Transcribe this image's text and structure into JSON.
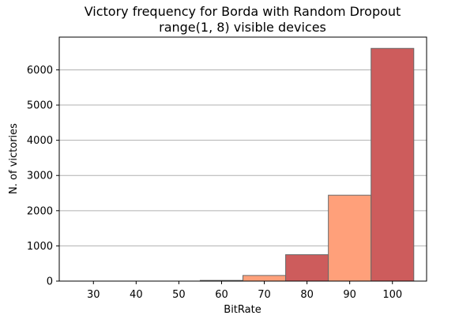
{
  "chart_data": {
    "type": "bar",
    "title_line1": "Victory frequency for Borda with Random Dropout",
    "title_line2": "range(1, 8) visible devices",
    "xlabel": "BitRate",
    "ylabel": "N. of victories",
    "x_tick_labels": [
      "30",
      "40",
      "50",
      "60",
      "70",
      "80",
      "90",
      "100"
    ],
    "y_tick_labels": [
      "0",
      "1000",
      "2000",
      "3000",
      "4000",
      "5000",
      "6000"
    ],
    "xlim": [
      22,
      108
    ],
    "ylim": [
      0,
      6930
    ],
    "grid": "y-axis",
    "categories": [
      "30",
      "40",
      "50",
      "60",
      "70",
      "80",
      "90",
      "100"
    ],
    "values": [
      0,
      0,
      0,
      20,
      160,
      750,
      2440,
      6610
    ],
    "bar_colors": [
      "#cd5c5c",
      "#ffa07a",
      "#cd5c5c",
      "#cd5c5c",
      "#ffa07a",
      "#cd5c5c",
      "#ffa07a",
      "#cd5c5c"
    ],
    "bar_edge_color": "#696969",
    "grid_color": "#b0b0b0"
  }
}
